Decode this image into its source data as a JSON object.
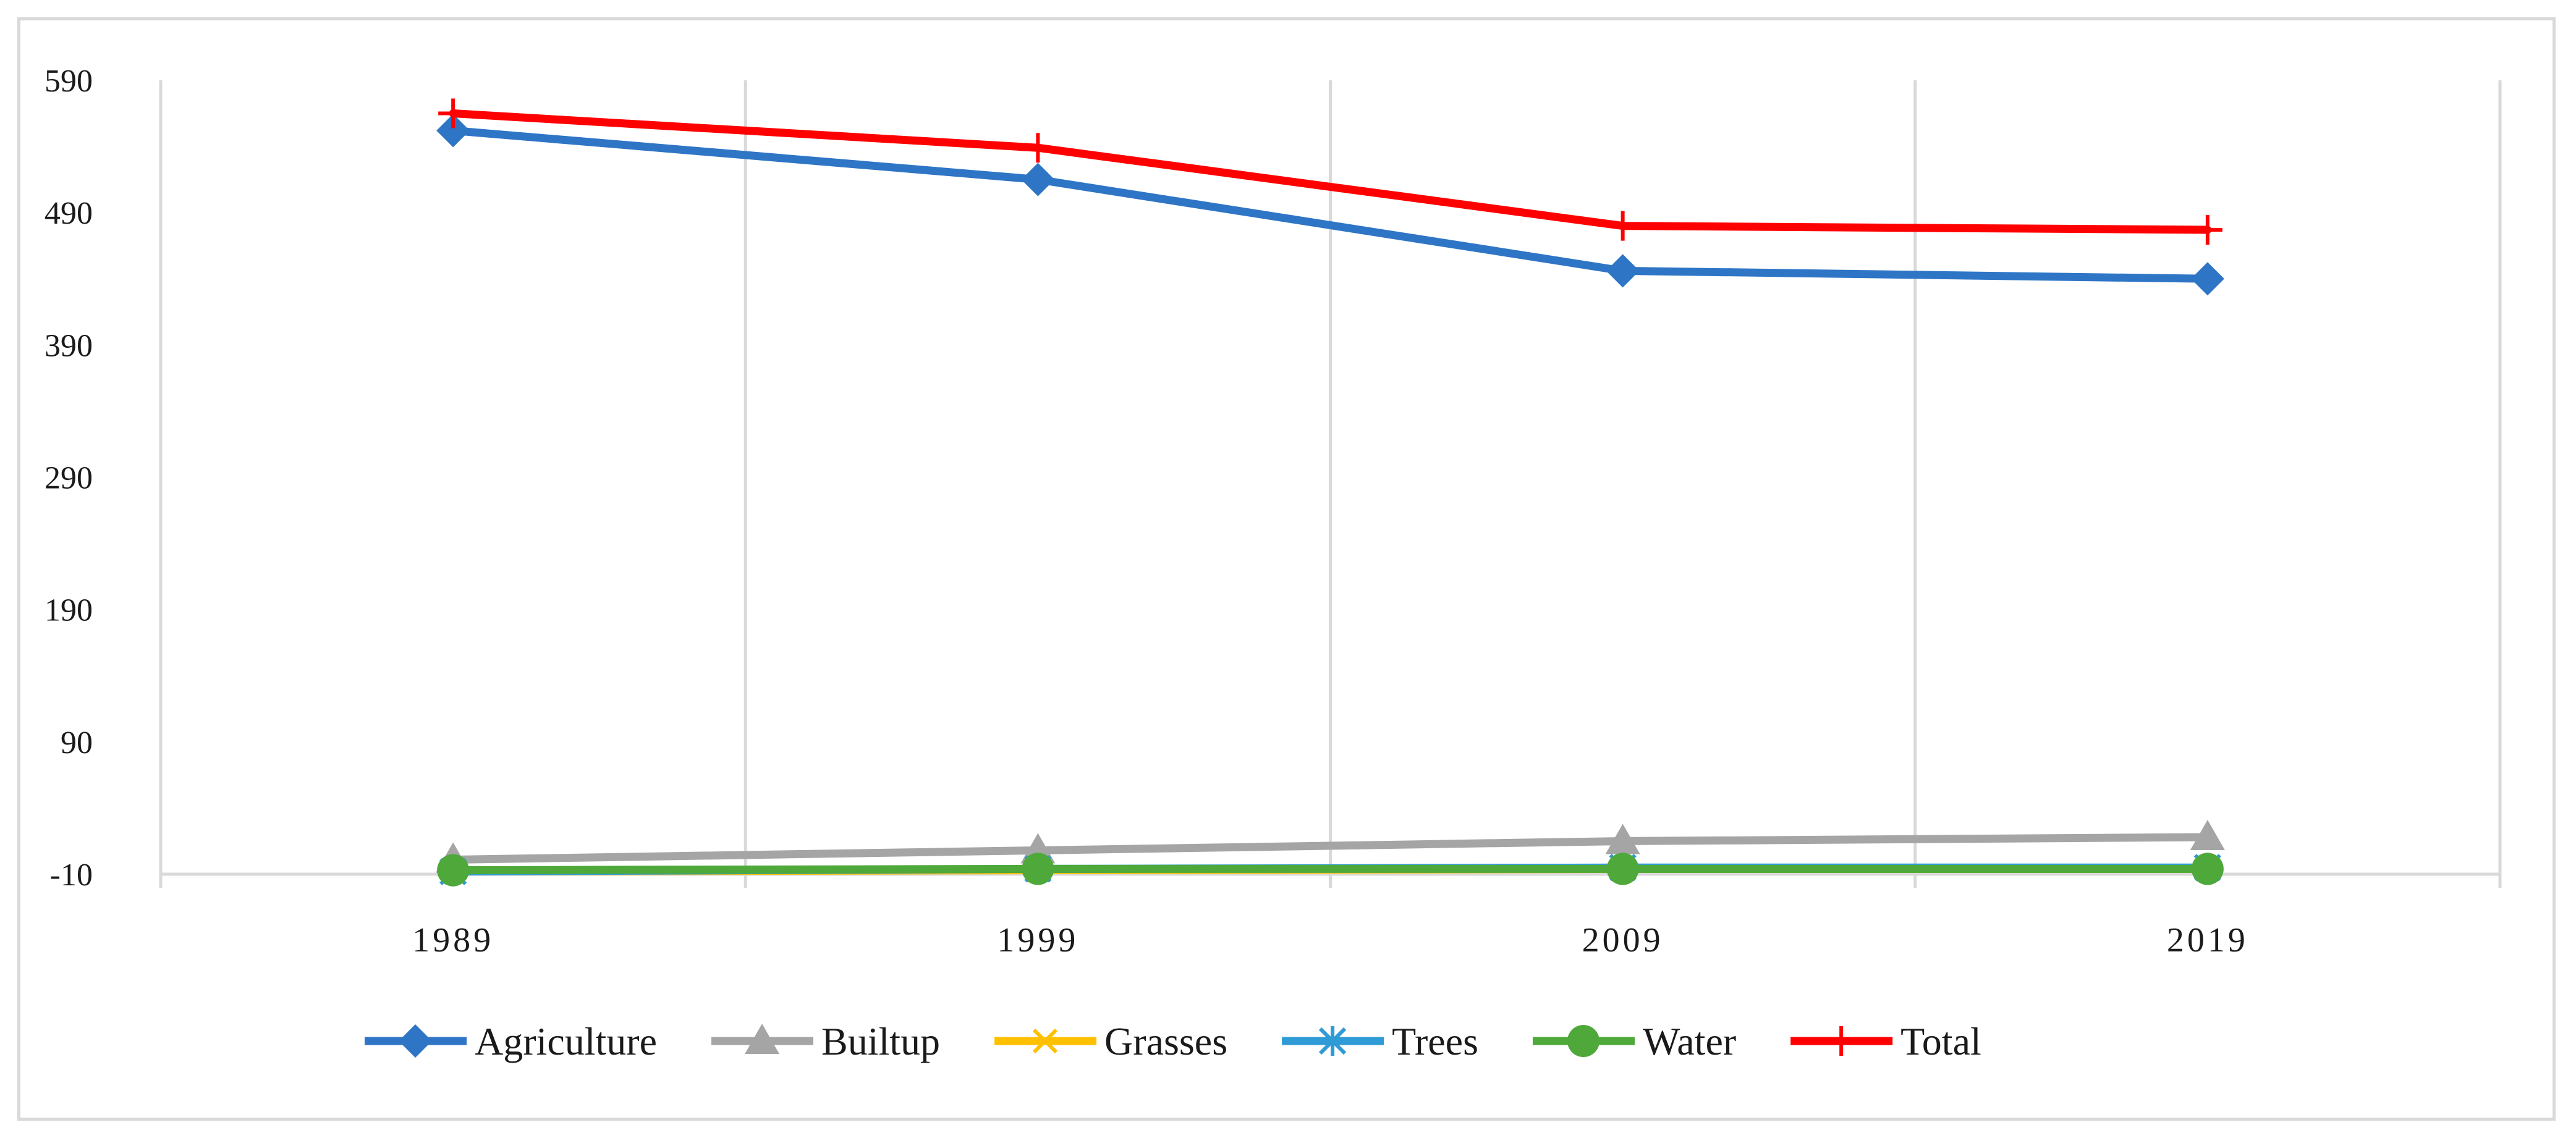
{
  "chart_data": {
    "type": "line",
    "title": "",
    "xlabel": "",
    "ylabel": "",
    "categories": [
      "1989",
      "1999",
      "2009",
      "2019"
    ],
    "ylim": [
      -10,
      590
    ],
    "yticks": [
      "590",
      "490",
      "390",
      "290",
      "190",
      "90",
      "-10"
    ],
    "ytick_values": [
      590,
      490,
      390,
      290,
      190,
      90,
      -10
    ],
    "grid": "vertical",
    "legend_position": "bottom",
    "series": [
      {
        "name": "Agriculture",
        "values": [
          552,
          515,
          446,
          440
        ],
        "color": "#2e75c6",
        "marker": "diamond"
      },
      {
        "name": "Builtup",
        "values": [
          1,
          8,
          15,
          18
        ],
        "color": "#a5a5a5",
        "marker": "triangle"
      },
      {
        "name": "Grasses",
        "values": [
          -8,
          -7,
          -6,
          -6
        ],
        "color": "#ffc000",
        "marker": "x"
      },
      {
        "name": "Trees",
        "values": [
          -8,
          -6,
          -5,
          -5
        ],
        "color": "#2e9bd6",
        "marker": "asterisk"
      },
      {
        "name": "Water",
        "values": [
          -7,
          -6,
          -6,
          -6
        ],
        "color": "#4ea83a",
        "marker": "circle"
      },
      {
        "name": "Total",
        "values": [
          565,
          539,
          480,
          477
        ],
        "color": "#ff0000",
        "marker": "plus"
      }
    ]
  }
}
